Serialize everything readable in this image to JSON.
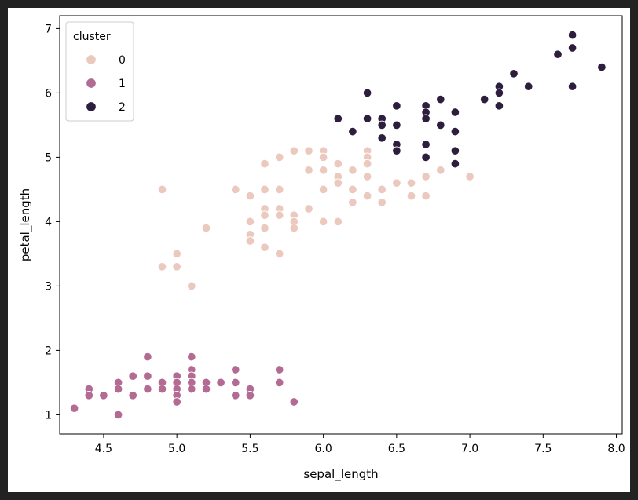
{
  "colors": {
    "background": "#222222",
    "figure": "#ffffff",
    "cluster_0": "#ebc9bf",
    "cluster_1": "#b36b93",
    "cluster_2": "#2d1e3e",
    "marker_edge": "#ffffff"
  },
  "chart_data": {
    "type": "scatter",
    "title": "",
    "xlabel": "sepal_length",
    "ylabel": "petal_length",
    "xlim": [
      4.2,
      8.04
    ],
    "ylim": [
      0.7,
      7.2
    ],
    "xticks": [
      4.5,
      5.0,
      5.5,
      6.0,
      6.5,
      7.0,
      7.5,
      8.0
    ],
    "xtick_labels": [
      "4.5",
      "5.0",
      "5.5",
      "6.0",
      "6.5",
      "7.0",
      "7.5",
      "8.0"
    ],
    "yticks": [
      1,
      2,
      3,
      4,
      5,
      6,
      7
    ],
    "ytick_labels": [
      "1",
      "2",
      "3",
      "4",
      "5",
      "6",
      "7"
    ],
    "grid": false,
    "legend": {
      "title": "cluster",
      "position": "top-left",
      "entries": [
        "0",
        "1",
        "2"
      ]
    },
    "series": [
      {
        "name": "0",
        "points": [
          [
            4.9,
            4.5
          ],
          [
            4.9,
            3.3
          ],
          [
            5.0,
            3.5
          ],
          [
            5.0,
            3.3
          ],
          [
            5.1,
            3.0
          ],
          [
            5.2,
            3.9
          ],
          [
            5.4,
            4.5
          ],
          [
            5.5,
            4.4
          ],
          [
            5.5,
            4.0
          ],
          [
            5.5,
            3.8
          ],
          [
            5.5,
            3.7
          ],
          [
            5.6,
            4.9
          ],
          [
            5.6,
            4.5
          ],
          [
            5.6,
            4.2
          ],
          [
            5.6,
            4.1
          ],
          [
            5.6,
            3.9
          ],
          [
            5.6,
            3.6
          ],
          [
            5.7,
            5.0
          ],
          [
            5.7,
            4.5
          ],
          [
            5.7,
            4.2
          ],
          [
            5.7,
            4.1
          ],
          [
            5.7,
            3.5
          ],
          [
            5.8,
            5.1
          ],
          [
            5.8,
            4.1
          ],
          [
            5.8,
            4.0
          ],
          [
            5.8,
            3.9
          ],
          [
            5.9,
            5.1
          ],
          [
            5.9,
            4.8
          ],
          [
            5.9,
            4.2
          ],
          [
            6.0,
            5.1
          ],
          [
            6.0,
            5.0
          ],
          [
            6.0,
            4.8
          ],
          [
            6.0,
            4.5
          ],
          [
            6.0,
            4.0
          ],
          [
            6.1,
            4.9
          ],
          [
            6.1,
            4.7
          ],
          [
            6.1,
            4.6
          ],
          [
            6.1,
            4.0
          ],
          [
            6.2,
            4.8
          ],
          [
            6.2,
            4.5
          ],
          [
            6.2,
            4.3
          ],
          [
            6.3,
            5.1
          ],
          [
            6.3,
            5.0
          ],
          [
            6.3,
            4.9
          ],
          [
            6.3,
            4.7
          ],
          [
            6.3,
            4.4
          ],
          [
            6.4,
            4.5
          ],
          [
            6.4,
            4.3
          ],
          [
            6.5,
            4.6
          ],
          [
            6.6,
            4.6
          ],
          [
            6.6,
            4.4
          ],
          [
            6.7,
            5.0
          ],
          [
            6.7,
            4.7
          ],
          [
            6.7,
            4.4
          ],
          [
            6.8,
            4.8
          ],
          [
            6.9,
            4.9
          ],
          [
            7.0,
            4.7
          ]
        ]
      },
      {
        "name": "1",
        "points": [
          [
            4.3,
            1.1
          ],
          [
            4.4,
            1.4
          ],
          [
            4.4,
            1.3
          ],
          [
            4.5,
            1.3
          ],
          [
            4.6,
            1.5
          ],
          [
            4.6,
            1.4
          ],
          [
            4.6,
            1.0
          ],
          [
            4.7,
            1.6
          ],
          [
            4.7,
            1.3
          ],
          [
            4.8,
            1.9
          ],
          [
            4.8,
            1.6
          ],
          [
            4.8,
            1.4
          ],
          [
            4.9,
            1.5
          ],
          [
            4.9,
            1.4
          ],
          [
            5.0,
            1.6
          ],
          [
            5.0,
            1.5
          ],
          [
            5.0,
            1.4
          ],
          [
            5.0,
            1.3
          ],
          [
            5.0,
            1.2
          ],
          [
            5.1,
            1.9
          ],
          [
            5.1,
            1.7
          ],
          [
            5.1,
            1.6
          ],
          [
            5.1,
            1.5
          ],
          [
            5.1,
            1.4
          ],
          [
            5.2,
            1.5
          ],
          [
            5.2,
            1.4
          ],
          [
            5.3,
            1.5
          ],
          [
            5.4,
            1.7
          ],
          [
            5.4,
            1.5
          ],
          [
            5.4,
            1.3
          ],
          [
            5.5,
            1.4
          ],
          [
            5.5,
            1.3
          ],
          [
            5.7,
            1.7
          ],
          [
            5.7,
            1.5
          ],
          [
            5.8,
            1.2
          ]
        ]
      },
      {
        "name": "2",
        "points": [
          [
            6.1,
            5.6
          ],
          [
            6.2,
            5.4
          ],
          [
            6.3,
            6.0
          ],
          [
            6.3,
            5.6
          ],
          [
            6.4,
            5.6
          ],
          [
            6.4,
            5.5
          ],
          [
            6.4,
            5.3
          ],
          [
            6.5,
            5.8
          ],
          [
            6.5,
            5.5
          ],
          [
            6.5,
            5.2
          ],
          [
            6.5,
            5.1
          ],
          [
            6.7,
            5.8
          ],
          [
            6.7,
            5.7
          ],
          [
            6.7,
            5.6
          ],
          [
            6.7,
            5.2
          ],
          [
            6.7,
            5.0
          ],
          [
            6.8,
            5.9
          ],
          [
            6.8,
            5.5
          ],
          [
            6.9,
            5.7
          ],
          [
            6.9,
            5.4
          ],
          [
            6.9,
            5.1
          ],
          [
            6.9,
            4.9
          ],
          [
            7.1,
            5.9
          ],
          [
            7.2,
            6.1
          ],
          [
            7.2,
            6.0
          ],
          [
            7.2,
            5.8
          ],
          [
            7.3,
            6.3
          ],
          [
            7.4,
            6.1
          ],
          [
            7.6,
            6.6
          ],
          [
            7.7,
            6.9
          ],
          [
            7.7,
            6.7
          ],
          [
            7.7,
            6.1
          ],
          [
            7.9,
            6.4
          ]
        ]
      }
    ]
  }
}
